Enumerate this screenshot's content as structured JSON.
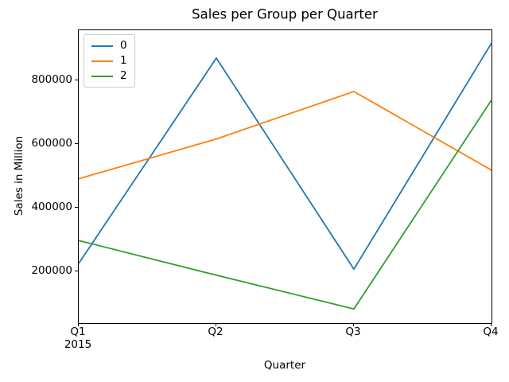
{
  "figure": {
    "background": "#ffffff",
    "spine_color": "#000000",
    "text_color": "#000000",
    "legend_border_color": "#cccccc"
  },
  "chart_data": {
    "type": "line",
    "title": "Sales per Group per Quarter",
    "xlabel": "Quarter",
    "ylabel": "Sales in Million",
    "categories": [
      "Q1",
      "Q2",
      "Q3",
      "Q4"
    ],
    "x_tick_sublabels": [
      "2015",
      "",
      "",
      ""
    ],
    "ytick_values": [
      200000,
      400000,
      600000,
      800000
    ],
    "ylim": [
      37500,
      957500
    ],
    "grid": false,
    "line_width": 1.8,
    "legend_position": "upper-left",
    "series": [
      {
        "name": "0",
        "color": "#1f77b4",
        "values": [
          225000,
          870000,
          207000,
          917000
        ]
      },
      {
        "name": "1",
        "color": "#ff7f0e",
        "values": [
          491000,
          616000,
          765000,
          518000
        ]
      },
      {
        "name": "2",
        "color": "#2ca02c",
        "values": [
          297000,
          188000,
          82000,
          738000
        ]
      }
    ]
  }
}
